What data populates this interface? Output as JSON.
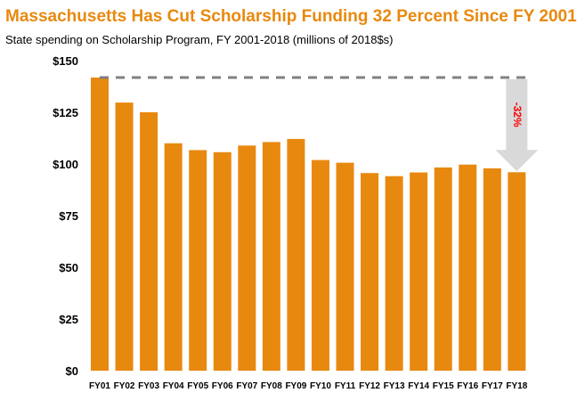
{
  "chart_data": {
    "type": "bar",
    "title": "Massachusetts Has Cut Scholarship Funding 32 Percent Since FY 2001",
    "subtitle": "State spending on Scholarship Program, FY 2001-2018 (millions of 2018$s)",
    "xlabel": "",
    "ylabel": "",
    "categories": [
      "FY01",
      "FY02",
      "FY03",
      "FY04",
      "FY05",
      "FY06",
      "FY07",
      "FY08",
      "FY09",
      "FY10",
      "FY11",
      "FY12",
      "FY13",
      "FY14",
      "FY15",
      "FY16",
      "FY17",
      "FY18"
    ],
    "values": [
      141.8,
      129.7,
      125.0,
      110.0,
      106.7,
      105.7,
      108.9,
      110.6,
      112.1,
      101.9,
      100.6,
      95.6,
      94.1,
      95.9,
      98.3,
      99.7,
      97.9,
      96.0
    ],
    "ylim": [
      0,
      150
    ],
    "yticks": [
      0,
      25,
      50,
      75,
      100,
      125,
      150
    ],
    "ytick_labels": [
      "$0",
      "$25",
      "$50",
      "$75",
      "$100",
      "$125",
      "$150"
    ],
    "grid": false,
    "bar_color": "#E8890F",
    "annotation": {
      "text": "-32%",
      "color": "#FF0000",
      "arrow_color": "#D9D9D9",
      "reference_line_color": "#808080"
    }
  }
}
